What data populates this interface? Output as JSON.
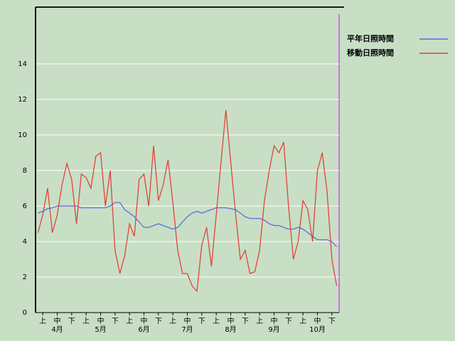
{
  "chart_data": {
    "type": "line",
    "categories": [
      null,
      "上",
      null,
      null,
      "中",
      null,
      null,
      "下",
      null,
      null,
      "上",
      null,
      null,
      "中",
      null,
      null,
      "下",
      null,
      null,
      "上",
      null,
      null,
      "中",
      null,
      null,
      "下",
      null,
      null,
      "上",
      null,
      null,
      "中",
      null,
      null,
      "下",
      null,
      null,
      "上",
      null,
      null,
      "中",
      null,
      null,
      "下",
      null,
      null,
      "上",
      null,
      null,
      "中",
      null,
      null,
      "下",
      null,
      null,
      "上",
      null,
      null,
      "中",
      null,
      null,
      "下",
      null
    ],
    "months": [
      "4月",
      "5月",
      "6月",
      "7月",
      "8月",
      "9月",
      "10月"
    ],
    "series": [
      {
        "name": "平年日照時間",
        "color": "#5a6ee0",
        "values": [
          5.6,
          5.7,
          5.85,
          5.9,
          6.0,
          6.0,
          6.0,
          6.0,
          6.0,
          5.9,
          5.9,
          5.9,
          5.9,
          5.9,
          5.9,
          6.0,
          6.2,
          6.2,
          5.8,
          5.6,
          5.4,
          5.1,
          4.8,
          4.8,
          4.9,
          5.0,
          4.9,
          4.8,
          4.7,
          4.8,
          5.1,
          5.4,
          5.6,
          5.7,
          5.6,
          5.7,
          5.8,
          5.9,
          5.9,
          5.9,
          5.85,
          5.8,
          5.6,
          5.4,
          5.3,
          5.3,
          5.3,
          5.2,
          5.0,
          4.9,
          4.9,
          4.8,
          4.7,
          4.7,
          4.8,
          4.7,
          4.5,
          4.3,
          4.1,
          4.1,
          4.1,
          4.0,
          3.7
        ]
      },
      {
        "name": "移動日照時間",
        "color": "#e0443a",
        "values": [
          4.5,
          5.5,
          7.0,
          4.5,
          5.5,
          7.2,
          8.4,
          7.5,
          5.0,
          7.8,
          7.6,
          7.0,
          8.8,
          9.0,
          6.0,
          8.0,
          3.5,
          2.2,
          3.2,
          5.0,
          4.3,
          7.5,
          7.8,
          6.0,
          9.4,
          6.3,
          7.2,
          8.6,
          6.2,
          3.5,
          2.2,
          2.2,
          1.5,
          1.2,
          3.8,
          4.8,
          2.6,
          5.5,
          8.5,
          11.4,
          8.5,
          5.6,
          3.0,
          3.5,
          2.2,
          2.3,
          3.5,
          6.3,
          8.0,
          9.4,
          9.0,
          9.6,
          6.0,
          3.0,
          4.0,
          6.3,
          5.8,
          4.0,
          8.0,
          9.0,
          6.8,
          3.0,
          1.5
        ]
      }
    ],
    "ylim": [
      0,
      17.2
    ],
    "yticks": [
      0,
      2,
      4,
      6,
      8,
      10,
      12,
      14
    ],
    "grid": true
  }
}
